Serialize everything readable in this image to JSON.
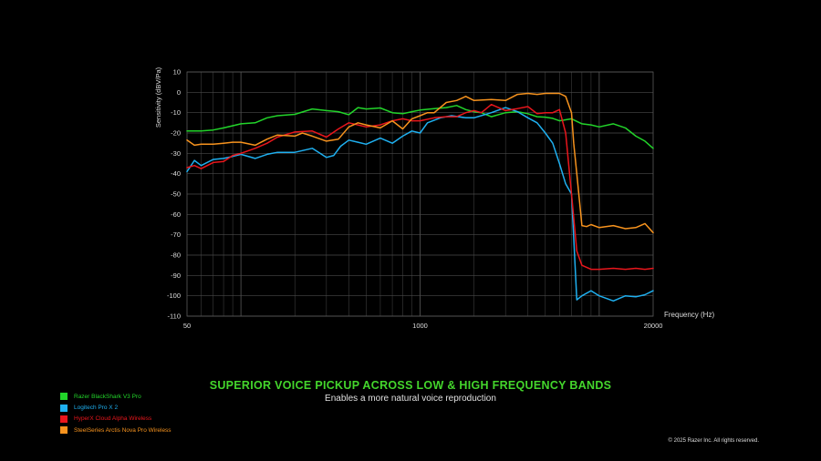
{
  "chart_data": {
    "type": "line",
    "title": "",
    "xlabel": "Frequency (Hz)",
    "ylabel": "Sensitivity (dBV/Pa)",
    "x_scale": "log",
    "xlim": [
      50,
      20000
    ],
    "ylim": [
      -110,
      10
    ],
    "x_tick_labels": [
      "50",
      "1000",
      "20000"
    ],
    "y_ticks": [
      10,
      0,
      -10,
      -20,
      -30,
      -40,
      -50,
      -60,
      -70,
      -80,
      -90,
      -100,
      -110
    ],
    "grid": true,
    "legend_position": "bottom-left",
    "series": [
      {
        "name": "Razer BlackShark V3 Pro",
        "color": "#22d42a",
        "x": [
          50,
          60,
          70,
          80,
          100,
          120,
          140,
          160,
          200,
          250,
          300,
          350,
          400,
          450,
          500,
          600,
          700,
          800,
          900,
          1000,
          1200,
          1400,
          1600,
          1800,
          2000,
          2200,
          2500,
          3000,
          3500,
          4000,
          4500,
          5000,
          5500,
          6000,
          7000,
          8000,
          9000,
          10000,
          12000,
          14000,
          16000,
          18000,
          20000
        ],
        "values": [
          -19,
          -19,
          -18.5,
          -17.5,
          -15.5,
          -15,
          -12.5,
          -11.5,
          -10.8,
          -8.2,
          -9,
          -9.5,
          -11,
          -7.5,
          -8.2,
          -7.7,
          -10,
          -10.5,
          -9.5,
          -8.7,
          -8,
          -7.5,
          -6.5,
          -8.5,
          -9.5,
          -10,
          -12,
          -10,
          -9.5,
          -10.5,
          -12,
          -12.2,
          -12.8,
          -14,
          -13,
          -15.5,
          -16,
          -17,
          -15.5,
          -17.5,
          -21.5,
          -24,
          -27.5
        ]
      },
      {
        "name": "Logitech Pro X 2",
        "color": "#1fb0f0",
        "x": [
          50,
          55,
          60,
          70,
          80,
          90,
          100,
          120,
          140,
          160,
          200,
          250,
          300,
          330,
          360,
          400,
          450,
          500,
          600,
          700,
          800,
          900,
          1000,
          1100,
          1300,
          1500,
          1800,
          2000,
          2500,
          3000,
          3500,
          4000,
          4500,
          5000,
          5500,
          6000,
          6500,
          7000,
          7500,
          8000,
          9000,
          10000,
          12000,
          14000,
          16000,
          18000,
          20000
        ],
        "values": [
          -39,
          -33.5,
          -36,
          -33,
          -32.5,
          -31.5,
          -30.5,
          -32.5,
          -30.5,
          -29.5,
          -29.5,
          -27.5,
          -32,
          -31,
          -26.5,
          -23.5,
          -24.5,
          -25.5,
          -22.5,
          -25,
          -21.5,
          -19,
          -20,
          -15,
          -12.5,
          -11.5,
          -12.5,
          -12.5,
          -10,
          -7.5,
          -9.5,
          -12.5,
          -15,
          -20,
          -25,
          -35,
          -45,
          -50,
          -102,
          -100,
          -97.5,
          -100,
          -102.5,
          -100,
          -100.5,
          -99.5,
          -97.5
        ]
      },
      {
        "name": "HyperX Cloud Alpha Wireless",
        "color": "#e8161c",
        "x": [
          50,
          55,
          60,
          70,
          80,
          90,
          100,
          120,
          140,
          160,
          200,
          250,
          300,
          350,
          400,
          450,
          500,
          600,
          700,
          800,
          900,
          1000,
          1200,
          1400,
          1600,
          1800,
          2000,
          2200,
          2500,
          3000,
          3500,
          4000,
          4500,
          5000,
          5500,
          6000,
          6500,
          7000,
          7500,
          8000,
          9000,
          10000,
          12000,
          14000,
          16000,
          18000,
          20000
        ],
        "values": [
          -37,
          -36,
          -37.5,
          -34.5,
          -34,
          -31,
          -30,
          -27.5,
          -25,
          -22,
          -19.5,
          -19,
          -22,
          -18,
          -15,
          -16,
          -17,
          -16,
          -14,
          -13,
          -14,
          -14,
          -12.5,
          -12,
          -12,
          -10,
          -9,
          -10,
          -6,
          -9,
          -8,
          -7,
          -10.5,
          -10,
          -10,
          -8.5,
          -20,
          -50,
          -78,
          -85,
          -87,
          -87,
          -86.5,
          -87,
          -86.5,
          -87,
          -86.5
        ]
      },
      {
        "name": "SteelSeries Arctis Nova Pro Wireless",
        "color": "#f7931e",
        "x": [
          50,
          55,
          60,
          70,
          80,
          90,
          100,
          120,
          140,
          160,
          200,
          220,
          250,
          300,
          350,
          400,
          450,
          500,
          600,
          700,
          800,
          900,
          1000,
          1100,
          1200,
          1400,
          1600,
          1800,
          2000,
          2500,
          3000,
          3500,
          4000,
          4500,
          5000,
          5500,
          6000,
          6500,
          7000,
          7200,
          7500,
          8000,
          8500,
          9000,
          10000,
          12000,
          14000,
          16000,
          18000,
          20000
        ],
        "values": [
          -23.5,
          -26,
          -25.5,
          -25.5,
          -25,
          -24.5,
          -24.5,
          -26,
          -23,
          -21,
          -21.5,
          -20,
          -21.5,
          -24,
          -23,
          -17,
          -15,
          -16,
          -17.5,
          -14,
          -18,
          -13,
          -11.5,
          -10,
          -10,
          -5,
          -4,
          -2,
          -4,
          -3.5,
          -4,
          -1,
          -0.5,
          -1,
          -0.5,
          -0.5,
          -0.5,
          -2,
          -10,
          -25,
          -40,
          -65.5,
          -66,
          -65,
          -66.5,
          -65.5,
          -67,
          -66.5,
          -64.5,
          -69
        ]
      }
    ]
  },
  "legend": [
    {
      "label": "Razer BlackShark V3 Pro",
      "color": "#22d42a"
    },
    {
      "label": "Logitech Pro X 2",
      "color": "#1fb0f0"
    },
    {
      "label": "HyperX Cloud Alpha Wireless",
      "color": "#e8161c"
    },
    {
      "label": "SteelSeries Arctis Nova Pro Wireless",
      "color": "#f7931e"
    }
  ],
  "headline": "SUPERIOR VOICE PICKUP ACROSS LOW & HIGH FREQUENCY BANDS",
  "headline_color": "#44d62c",
  "subheadline": "Enables a more natural voice reproduction",
  "copyright": "© 2025 Razer Inc. All rights reserved."
}
